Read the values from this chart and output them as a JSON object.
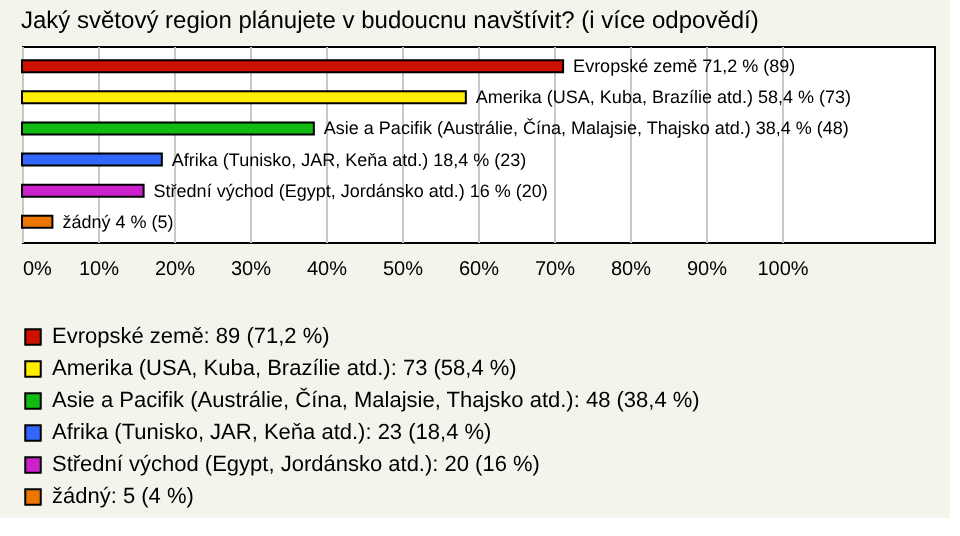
{
  "chart_data": {
    "type": "bar",
    "orientation": "horizontal",
    "title": "Jaký světový region plánujete v budoucnu navštívit? (i více odpovědí)",
    "categories": [
      null,
      null,
      null,
      null,
      null,
      null
    ],
    "series": [
      {
        "name": "Evropské země: 89 (71,2 %)",
        "color": "#cc1100",
        "values": [
          71.2,
          null,
          null,
          null,
          null,
          null
        ],
        "value_labels": [
          "Evropské země 71,2 % (89)",
          null,
          null,
          null,
          null,
          null
        ]
      },
      {
        "name": "Amerika (USA, Kuba, Brazílie atd.): 73 (58,4 %)",
        "color": "#ffee00",
        "values": [
          null,
          58.4,
          null,
          null,
          null,
          null
        ],
        "value_labels": [
          null,
          "Amerika (USA, Kuba, Brazílie atd.) 58,4 % (73)",
          null,
          null,
          null,
          null
        ]
      },
      {
        "name": "Asie a Pacifik (Austrálie, Čína, Malajsie, Thajsko atd.): 48 (38,4 %)",
        "color": "#11bb11",
        "values": [
          null,
          null,
          38.4,
          null,
          null,
          null
        ],
        "value_labels": [
          null,
          null,
          "Asie a Pacifik (Austrálie, Čína, Malajsie, Thajsko atd.) 38,4 % (48)",
          null,
          null,
          null
        ]
      },
      {
        "name": "Afrika (Tunisko, JAR, Keňa atd.): 23 (18,4 %)",
        "color": "#3366ff",
        "values": [
          null,
          null,
          null,
          18.4,
          null,
          null
        ],
        "value_labels": [
          null,
          null,
          null,
          "Afrika (Tunisko, JAR, Keňa atd.) 18,4 % (23)",
          null,
          null
        ]
      },
      {
        "name": "Střední východ (Egypt, Jordánsko atd.): 20 (16 %)",
        "color": "#cc22cc",
        "values": [
          null,
          null,
          null,
          null,
          16,
          null
        ],
        "value_labels": [
          null,
          null,
          null,
          null,
          "Střední východ (Egypt, Jordánsko atd.) 16 % (20)",
          null
        ]
      },
      {
        "name": "žádný: 5 (4 %)",
        "color": "#ee7700",
        "values": [
          null,
          null,
          null,
          null,
          null,
          4
        ],
        "value_labels": [
          null,
          null,
          null,
          null,
          null,
          "žádný 4 % (5)"
        ]
      }
    ],
    "xlim": [
      0,
      120
    ],
    "xticks": [
      {
        "value": 0,
        "label": "0%"
      },
      {
        "value": 10,
        "label": "10%"
      },
      {
        "value": 20,
        "label": "20%"
      },
      {
        "value": 30,
        "label": "30%"
      },
      {
        "value": 40,
        "label": "40%"
      },
      {
        "value": 50,
        "label": "50%"
      },
      {
        "value": 60,
        "label": "60%"
      },
      {
        "value": 70,
        "label": "70%"
      },
      {
        "value": 80,
        "label": "80%"
      },
      {
        "value": 90,
        "label": "90%"
      },
      {
        "value": 100,
        "label": "100%"
      }
    ],
    "grid": "x",
    "legend": "bottom"
  }
}
